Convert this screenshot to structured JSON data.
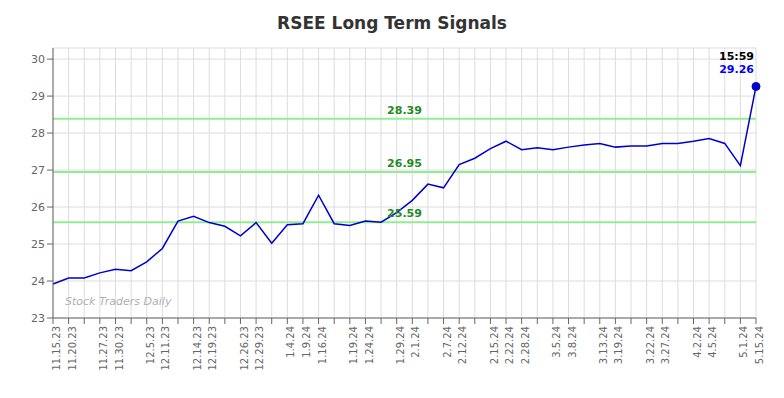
{
  "chart_data": {
    "type": "line",
    "title": "RSEE Long Term Signals",
    "categories": [
      "11.15.23",
      "11.20.23",
      null,
      "11.27.23",
      "11.30.23",
      null,
      "12.5.23",
      "12.11.23",
      null,
      "12.14.23",
      "12.19.23",
      null,
      "12.26.23",
      "12.29.23",
      null,
      "1.4.24",
      "1.9.24",
      "1.16.24",
      null,
      "1.19.24",
      "1.24.24",
      null,
      "1.29.24",
      "2.1.24",
      null,
      "2.7.24",
      "2.12.24",
      null,
      "2.15.24",
      "2.22.24",
      "2.28.24",
      null,
      "3.5.24",
      "3.8.24",
      null,
      "3.13.24",
      "3.19.24",
      null,
      "3.22.24",
      "3.27.24",
      null,
      "4.2.24",
      "4.5.24",
      null,
      "5.1.24",
      "5.15.24"
    ],
    "values": [
      23.92,
      24.08,
      24.08,
      24.22,
      24.32,
      24.28,
      24.52,
      24.88,
      25.62,
      25.75,
      25.58,
      25.48,
      25.22,
      25.58,
      25.02,
      25.52,
      25.55,
      26.32,
      25.55,
      25.5,
      25.62,
      25.59,
      25.85,
      26.18,
      26.62,
      26.52,
      27.15,
      27.32,
      27.58,
      27.78,
      27.55,
      27.6,
      27.55,
      27.62,
      27.68,
      27.72,
      27.62,
      27.65,
      27.65,
      27.72,
      27.72,
      27.78,
      27.85,
      27.72,
      27.12,
      29.26
    ],
    "color": "#0000CC",
    "ylim": [
      23,
      30.3
    ],
    "yticks": [
      23,
      24,
      25,
      26,
      27,
      28,
      29,
      30
    ],
    "grid": true,
    "hlines": [
      {
        "value": 25.59,
        "label": "25.59",
        "color": "#90EE90",
        "label_color": "#228B22"
      },
      {
        "value": 26.95,
        "label": "26.95",
        "color": "#90EE90",
        "label_color": "#228B22"
      },
      {
        "value": 28.39,
        "label": "28.39",
        "color": "#90EE90",
        "label_color": "#228B22"
      }
    ],
    "annotations": [
      {
        "text": "15:59",
        "color": "#000000"
      },
      {
        "text": "29.26",
        "color": "#0000FF"
      }
    ],
    "watermark": {
      "text": "Stock Traders Daily",
      "color": "#b0b0b0"
    }
  }
}
